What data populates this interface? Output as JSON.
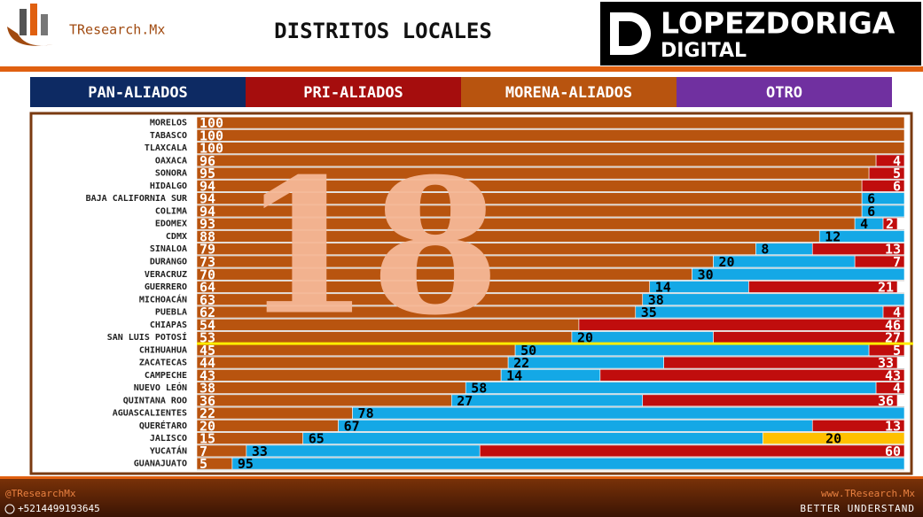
{
  "header": {
    "brand": "TResearch.Mx",
    "title": "DISTRITOS LOCALES",
    "media": "LOPEZDORIGA",
    "media_sub": "DIGITAL"
  },
  "footer": {
    "handle": "@TResearchMx",
    "phone": "+5214499193645",
    "site": "www.TResearch.Mx",
    "slogan": "BETTER UNDERSTAND"
  },
  "chart_data": {
    "type": "stacked-bar-horizontal",
    "annotation": "18",
    "categories": [
      "MORELOS",
      "TABASCO",
      "TLAXCALA",
      "OAXACA",
      "SONORA",
      "HIDALGO",
      "BAJA CALIFORNIA SUR",
      "COLIMA",
      "EDOMEX",
      "CDMX",
      "SINALOA",
      "DURANGO",
      "VERACRUZ",
      "GUERRERO",
      "MICHOACÁN",
      "PUEBLA",
      "CHIAPAS",
      "SAN LUIS POTOSÍ",
      "CHIHUAHUA",
      "ZACATECAS",
      "CAMPECHE",
      "NUEVO LEÓN",
      "QUINTANA ROO",
      "AGUASCALIENTES",
      "QUERÉTARO",
      "JALISCO",
      "YUCATÁN",
      "GUANAJUATO"
    ],
    "xlim": [
      0,
      100
    ],
    "series": [
      {
        "name": "PAN-ALIADOS",
        "legend_color": "#0d2a63",
        "color": "#14a8e6",
        "text_color": "#000000",
        "values": [
          null,
          null,
          null,
          null,
          null,
          null,
          6,
          6,
          4,
          12,
          8,
          20,
          30,
          14,
          38,
          35,
          null,
          20,
          50,
          22,
          14,
          58,
          27,
          78,
          67,
          65,
          33,
          95
        ]
      },
      {
        "name": "PRI-ALIADOS",
        "legend_color": "#a50d0d",
        "color": "#c00d0d",
        "text_color": "#ffffff",
        "values": [
          null,
          null,
          null,
          4,
          5,
          6,
          null,
          null,
          2,
          null,
          13,
          7,
          null,
          21,
          null,
          4,
          46,
          27,
          5,
          33,
          43,
          4,
          36,
          null,
          13,
          null,
          60,
          null
        ]
      },
      {
        "name": "MORENA-ALIADOS",
        "legend_color": "#b8540f",
        "color": "#b8540f",
        "text_color": "#ffffff",
        "values": [
          100,
          100,
          100,
          96,
          95,
          94,
          94,
          94,
          93,
          88,
          79,
          73,
          70,
          64,
          63,
          62,
          54,
          53,
          45,
          44,
          43,
          38,
          36,
          22,
          20,
          15,
          7,
          5
        ]
      },
      {
        "name": "OTRO",
        "legend_color": "#7030a0",
        "color": "#ffc000",
        "text_color": "#000000",
        "values": [
          null,
          null,
          null,
          null,
          null,
          null,
          null,
          null,
          null,
          null,
          null,
          null,
          null,
          null,
          null,
          null,
          null,
          null,
          null,
          null,
          null,
          null,
          null,
          null,
          null,
          20,
          null,
          null
        ]
      }
    ]
  }
}
